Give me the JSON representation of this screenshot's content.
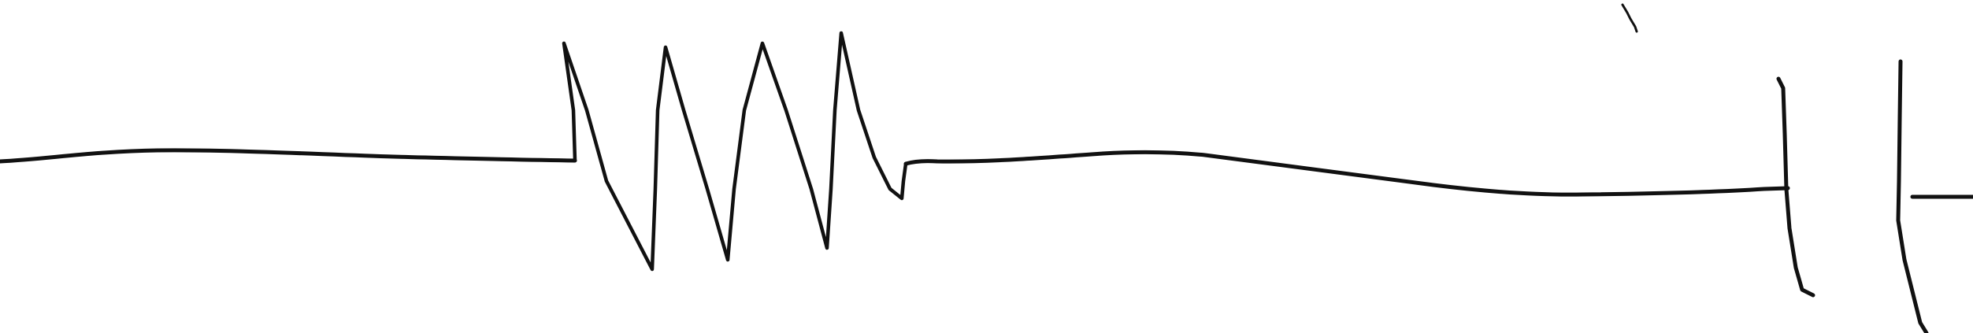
{
  "diagram": {
    "type": "hand-drawn circuit sketch",
    "ink_color": "#111111",
    "background_color": "#ffffff",
    "components": [
      {
        "kind": "wire",
        "name": "left-wire"
      },
      {
        "kind": "resistor",
        "name": "resistor-zigzag"
      },
      {
        "kind": "wire",
        "name": "middle-wire"
      },
      {
        "kind": "capacitor",
        "name": "capacitor"
      },
      {
        "kind": "wire",
        "name": "right-wire"
      }
    ]
  }
}
